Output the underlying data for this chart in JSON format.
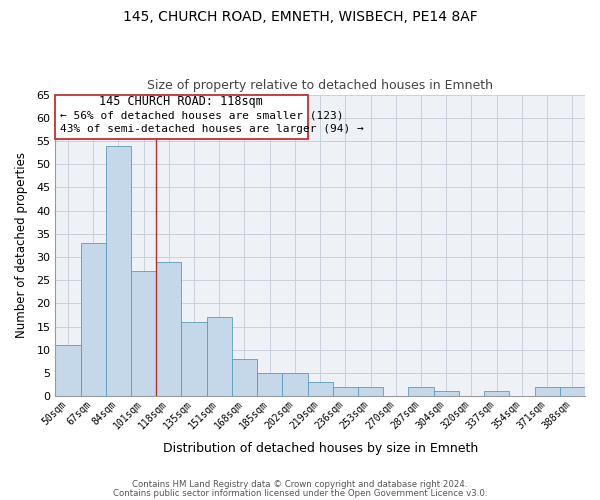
{
  "title1": "145, CHURCH ROAD, EMNETH, WISBECH, PE14 8AF",
  "title2": "Size of property relative to detached houses in Emneth",
  "xlabel": "Distribution of detached houses by size in Emneth",
  "ylabel": "Number of detached properties",
  "bar_labels": [
    "50sqm",
    "67sqm",
    "84sqm",
    "101sqm",
    "118sqm",
    "135sqm",
    "151sqm",
    "168sqm",
    "185sqm",
    "202sqm",
    "219sqm",
    "236sqm",
    "253sqm",
    "270sqm",
    "287sqm",
    "304sqm",
    "320sqm",
    "337sqm",
    "354sqm",
    "371sqm",
    "388sqm"
  ],
  "bar_values": [
    11,
    33,
    54,
    27,
    29,
    16,
    17,
    8,
    5,
    5,
    3,
    2,
    2,
    0,
    2,
    1,
    0,
    1,
    0,
    2,
    2
  ],
  "highlight_index": 4,
  "bar_color": "#c5d8ea",
  "bar_edge_color": "#5a9abe",
  "ylim": [
    0,
    65
  ],
  "yticks": [
    0,
    5,
    10,
    15,
    20,
    25,
    30,
    35,
    40,
    45,
    50,
    55,
    60,
    65
  ],
  "ann_line1": "145 CHURCH ROAD: 118sqm",
  "ann_line2": "← 56% of detached houses are smaller (123)",
  "ann_line3": "43% of semi-detached houses are larger (94) →",
  "footer1": "Contains HM Land Registry data © Crown copyright and database right 2024.",
  "footer2": "Contains public sector information licensed under the Open Government Licence v3.0.",
  "bg_color": "#ffffff",
  "plot_bg_color": "#eef2f7",
  "grid_color": "#c8d0dc",
  "highlight_line_color": "#b03030",
  "ann_box_color": "#c03030"
}
